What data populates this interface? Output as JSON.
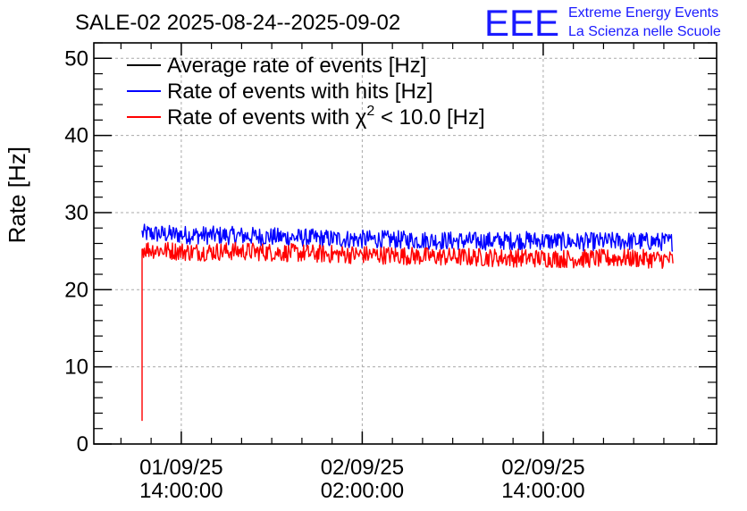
{
  "header": {
    "title": "SALE-02 2025-08-24--2025-09-02",
    "logo_text": "EEE",
    "logo_line1": "Extreme Energy Events",
    "logo_line2": "La Scienza nelle Scuole"
  },
  "chart_data": {
    "type": "line",
    "title": "SALE-02 2025-08-24--2025-09-02",
    "ylabel": "Rate [Hz]",
    "xlabel": "",
    "ylim": [
      0,
      52
    ],
    "grid": true,
    "legend_placement": "top-left",
    "y_ticks": [
      0,
      10,
      20,
      30,
      40,
      50
    ],
    "x_ticks": [
      {
        "date": "01/09/25",
        "time": "14:00:00",
        "hours": 0
      },
      {
        "date": "02/09/25",
        "time": "02:00:00",
        "hours": 12
      },
      {
        "date": "02/09/25",
        "time": "14:00:00",
        "hours": 24
      }
    ],
    "xlim_hours": [
      -5.8,
      35.5
    ],
    "series": [
      {
        "name": "Average rate of events [Hz]",
        "color": "#000000",
        "x_start_hours": -2.6,
        "x_end_hours": 32.6,
        "values": []
      },
      {
        "name": "Rate of events with hits [Hz]",
        "color": "#0000ff",
        "x_start_hours": -2.6,
        "x_end_hours": 32.6,
        "values": [
          27.3,
          27.1,
          27.0,
          26.8,
          26.6,
          26.5,
          26.4,
          26.3,
          26.4,
          26.2,
          26.3,
          26.2
        ]
      },
      {
        "name": "Rate of events with χ² < 10.0 [Hz]",
        "color": "#ff0000",
        "x_start_hours": -2.6,
        "x_end_hours": 32.6,
        "first_value": 3,
        "values": [
          25.3,
          24.9,
          25.0,
          24.8,
          24.6,
          24.5,
          24.3,
          24.2,
          24.1,
          24.0,
          24.1,
          23.9
        ]
      }
    ],
    "legend": {
      "entries": [
        {
          "label_main": "Average rate of events [Hz]",
          "color": "#000000"
        },
        {
          "label_main": "Rate of events with hits [Hz]",
          "color": "#0000ff"
        },
        {
          "label_main": "Rate of events with χ",
          "sup": "2",
          "label_tail": " < 10.0 [Hz]",
          "color": "#ff0000"
        }
      ]
    }
  }
}
